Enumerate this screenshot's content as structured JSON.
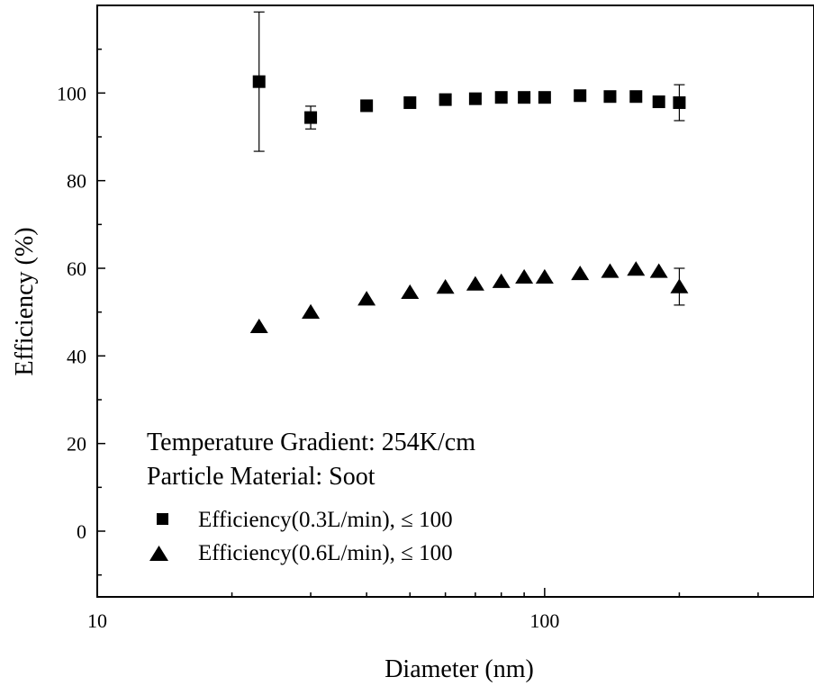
{
  "chart_data": {
    "type": "scatter",
    "xlabel": "Diameter (nm)",
    "ylabel": "Efficiency (%)",
    "xscale": "log",
    "xlim": [
      10,
      400
    ],
    "ylim": [
      -15,
      120
    ],
    "x_ticks": [
      10,
      100
    ],
    "x_tick_labels": [
      "10",
      "100"
    ],
    "y_ticks": [
      0,
      20,
      40,
      60,
      80,
      100
    ],
    "y_tick_labels": [
      "0",
      "20",
      "40",
      "60",
      "80",
      "100"
    ],
    "annotations": [
      "Temperature Gradient: 254K/cm",
      "Particle Material: Soot"
    ],
    "legend_position": "bottom-left",
    "series": [
      {
        "name": "Efficiency(0.3L/min), ≤ 100",
        "marker": "square",
        "color": "#000000",
        "x": [
          23,
          30,
          40,
          50,
          60,
          70,
          80,
          90,
          100,
          120,
          140,
          160,
          180,
          200
        ],
        "y": [
          102.6,
          94.4,
          97.1,
          97.8,
          98.5,
          98.7,
          99.0,
          99.0,
          99.0,
          99.4,
          99.2,
          99.2,
          98.0,
          97.8
        ],
        "error": [
          15.9,
          2.6,
          0,
          0,
          0,
          0,
          0,
          0,
          0,
          0,
          0,
          0,
          0,
          4.1
        ]
      },
      {
        "name": "Efficiency(0.6L/min), ≤ 100",
        "marker": "triangle",
        "color": "#000000",
        "x": [
          23,
          30,
          40,
          50,
          60,
          70,
          80,
          90,
          100,
          120,
          140,
          160,
          180,
          200
        ],
        "y": [
          46.7,
          50.0,
          53.0,
          54.5,
          55.7,
          56.4,
          57.0,
          58.0,
          58.0,
          58.8,
          59.3,
          59.8,
          59.3,
          55.8
        ],
        "error": [
          0,
          0,
          0,
          0,
          0,
          0,
          0,
          0,
          0,
          0,
          0,
          0,
          0,
          4.2
        ]
      }
    ]
  }
}
